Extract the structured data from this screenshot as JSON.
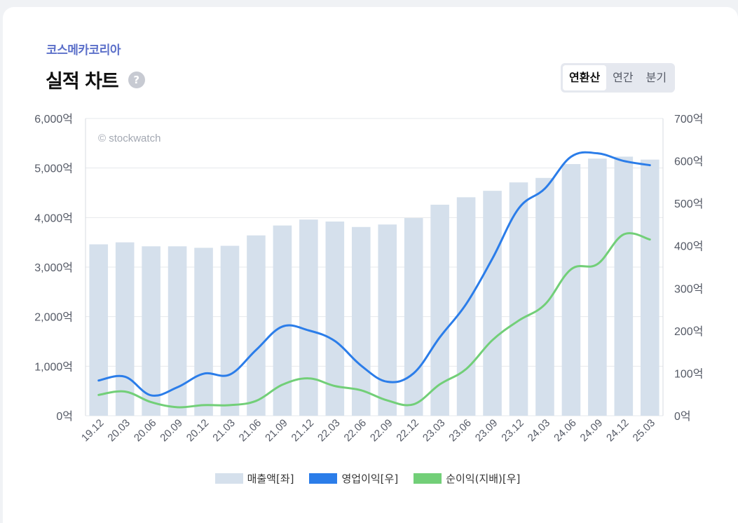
{
  "header": {
    "company": "코스메카코리아",
    "title": "실적 차트",
    "help_symbol": "?"
  },
  "tabs": [
    {
      "label": "연환산",
      "active": true
    },
    {
      "label": "연간",
      "active": false
    },
    {
      "label": "분기",
      "active": false
    }
  ],
  "watermark": "© stockwatch",
  "legend": [
    {
      "label": "매출액[좌]",
      "color": "#d5e0ec"
    },
    {
      "label": "영업이익[우]",
      "color": "#2b7de9"
    },
    {
      "label": "순이익(지배)[우]",
      "color": "#72cf78"
    }
  ],
  "chart_data": {
    "type": "bar",
    "categories": [
      "19.12",
      "20.03",
      "20.06",
      "20.09",
      "20.12",
      "21.03",
      "21.06",
      "21.09",
      "21.12",
      "22.03",
      "22.06",
      "22.09",
      "22.12",
      "23.03",
      "23.06",
      "23.09",
      "23.12",
      "24.03",
      "24.06",
      "24.09",
      "24.12",
      "25.03"
    ],
    "left_axis": {
      "ylim": [
        0,
        6000
      ],
      "ticks": [
        "0억",
        "1,000억",
        "2,000억",
        "3,000억",
        "4,000억",
        "5,000억",
        "6,000억"
      ]
    },
    "right_axis": {
      "ylim": [
        0,
        700
      ],
      "ticks": [
        "0억",
        "100억",
        "200억",
        "300억",
        "400억",
        "500억",
        "600억",
        "700억"
      ]
    },
    "series": [
      {
        "name": "매출액[좌]",
        "type": "bar",
        "axis": "left",
        "color": "#d5e0ec",
        "values": [
          3460,
          3500,
          3420,
          3420,
          3390,
          3430,
          3640,
          3840,
          3960,
          3920,
          3810,
          3860,
          3990,
          4260,
          4410,
          4540,
          4710,
          4800,
          5080,
          5190,
          5230,
          5170
        ]
      },
      {
        "name": "영업이익[우]",
        "type": "line",
        "axis": "right",
        "color": "#2b7de9",
        "values": [
          83,
          92,
          48,
          67,
          99,
          97,
          155,
          210,
          201,
          176,
          118,
          80,
          100,
          185,
          263,
          370,
          488,
          535,
          610,
          618,
          600,
          590
        ]
      },
      {
        "name": "순이익(지배)[우]",
        "type": "line",
        "axis": "right",
        "color": "#72cf78",
        "values": [
          49,
          57,
          32,
          20,
          25,
          25,
          35,
          73,
          88,
          70,
          60,
          36,
          27,
          74,
          110,
          178,
          224,
          262,
          345,
          357,
          427,
          415
        ]
      }
    ],
    "grid": true
  }
}
